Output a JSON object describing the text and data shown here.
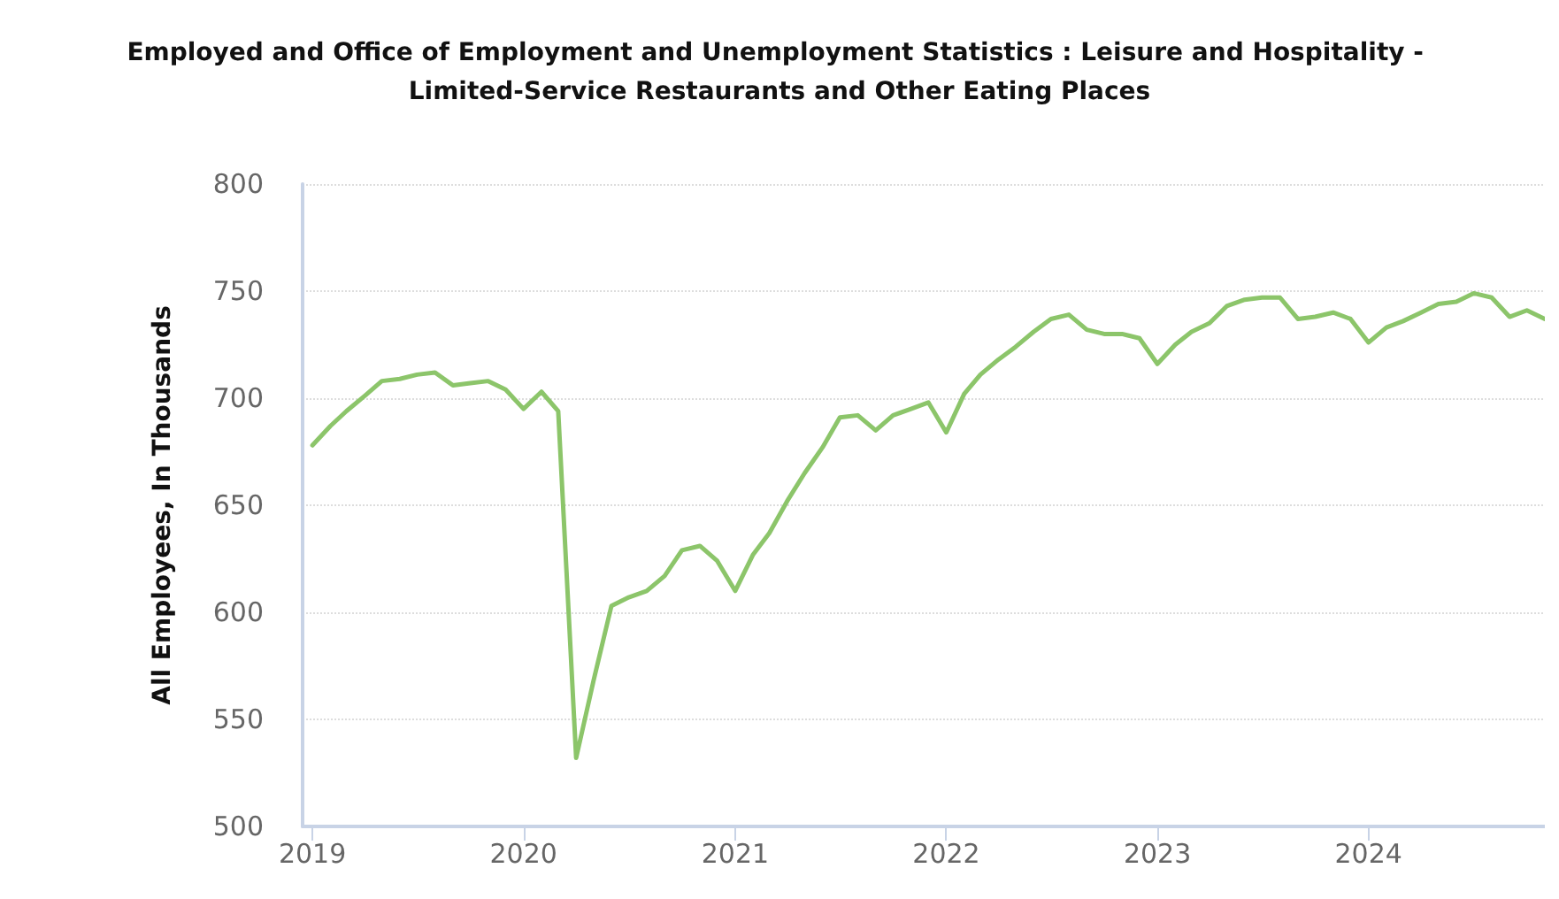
{
  "chart_data": {
    "type": "line",
    "title": "Employed and Office of Employment and Unemployment Statistics : Leisure and Hospitality - Limited-Service Restaurants and Other Eating Places",
    "ylabel": "All Employees, In Thousands",
    "x": [
      "2019-01",
      "2019-02",
      "2019-03",
      "2019-04",
      "2019-05",
      "2019-06",
      "2019-07",
      "2019-08",
      "2019-09",
      "2019-10",
      "2019-11",
      "2019-12",
      "2020-01",
      "2020-02",
      "2020-03",
      "2020-04",
      "2020-05",
      "2020-06",
      "2020-07",
      "2020-08",
      "2020-09",
      "2020-10",
      "2020-11",
      "2020-12",
      "2021-01",
      "2021-02",
      "2021-03",
      "2021-04",
      "2021-05",
      "2021-06",
      "2021-07",
      "2021-08",
      "2021-09",
      "2021-10",
      "2021-11",
      "2021-12",
      "2022-01",
      "2022-02",
      "2022-03",
      "2022-04",
      "2022-05",
      "2022-06",
      "2022-07",
      "2022-08",
      "2022-09",
      "2022-10",
      "2022-11",
      "2022-12",
      "2023-01",
      "2023-02",
      "2023-03",
      "2023-04",
      "2023-05",
      "2023-06",
      "2023-07",
      "2023-08",
      "2023-09",
      "2023-10",
      "2023-11",
      "2023-12",
      "2024-01",
      "2024-02",
      "2024-03",
      "2024-04",
      "2024-05",
      "2024-06",
      "2024-07",
      "2024-08",
      "2024-09",
      "2024-10",
      "2024-11"
    ],
    "series": [
      {
        "color": "#8cc56a",
        "values": [
          678,
          687,
          694,
          701,
          708,
          709,
          711,
          712,
          706,
          707,
          708,
          704,
          695,
          703,
          694,
          532,
          568,
          603,
          607,
          610,
          617,
          629,
          631,
          624,
          610,
          627,
          637,
          652,
          665,
          677,
          691,
          692,
          685,
          692,
          695,
          698,
          684,
          702,
          711,
          718,
          724,
          731,
          737,
          739,
          732,
          730,
          730,
          728,
          716,
          725,
          731,
          735,
          743,
          746,
          747,
          747,
          737,
          738,
          740,
          737,
          726,
          733,
          736,
          740,
          744,
          745,
          749,
          747,
          738,
          741,
          737
        ]
      }
    ],
    "xlim": [
      "2018-12-15",
      "2024-11"
    ],
    "xticks": [
      "2019",
      "2020",
      "2021",
      "2022",
      "2023",
      "2024"
    ],
    "ylim": [
      500,
      800
    ],
    "yticks": [
      500,
      550,
      600,
      650,
      700,
      750,
      800
    ],
    "grid": "y",
    "marker": "none",
    "line_style": "solid"
  }
}
